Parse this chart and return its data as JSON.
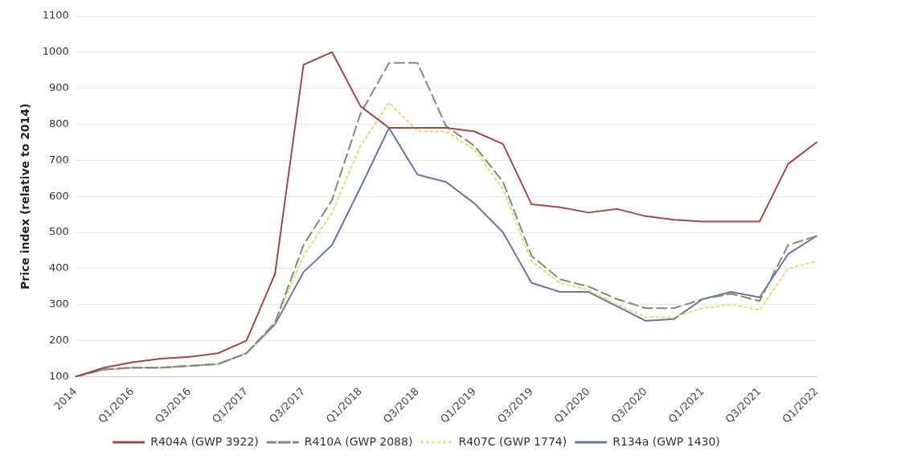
{
  "chart_data": {
    "type": "line",
    "ylabel": "Price index (relative to 2014)",
    "categories": [
      "2014",
      null,
      "Q1/2016",
      null,
      "Q3/2016",
      null,
      "Q1/2017",
      null,
      "Q3/2017",
      null,
      "Q1/2018",
      null,
      "Q3/2018",
      null,
      "Q1/2019",
      null,
      "Q3/2019",
      null,
      "Q1/2020",
      null,
      "Q3/2020",
      null,
      "Q1/2021",
      null,
      "Q3/2021",
      null,
      "Q1/2022"
    ],
    "series": [
      {
        "name": "R404A (GWP 3922)",
        "color": "#9b4a4a",
        "line_style": "solid",
        "values": [
          100,
          125,
          140,
          150,
          155,
          165,
          200,
          385,
          965,
          1000,
          850,
          790,
          790,
          790,
          780,
          745,
          578,
          570,
          555,
          565,
          545,
          535,
          530,
          530,
          530,
          690,
          750
        ]
      },
      {
        "name": "R410A (GWP 2088)",
        "color": "#7d8c72",
        "line_style": "dashed",
        "values": [
          100,
          120,
          125,
          125,
          130,
          135,
          165,
          250,
          465,
          590,
          830,
          970,
          970,
          795,
          740,
          640,
          435,
          370,
          350,
          315,
          290,
          290,
          315,
          330,
          310,
          465,
          490
        ]
      },
      {
        "name": "R407C (GWP 1774)",
        "color": "#e3dc7a",
        "line_style": "dotted",
        "values": [
          100,
          120,
          125,
          125,
          130,
          135,
          165,
          250,
          435,
          555,
          740,
          860,
          780,
          780,
          730,
          620,
          420,
          360,
          340,
          300,
          265,
          265,
          290,
          300,
          285,
          400,
          420
        ]
      },
      {
        "name": "R134a (GWP 1430)",
        "color": "#6a76a0",
        "line_style": "solid",
        "values": [
          100,
          120,
          125,
          125,
          130,
          135,
          165,
          245,
          390,
          465,
          625,
          790,
          660,
          640,
          580,
          500,
          360,
          335,
          335,
          295,
          255,
          260,
          315,
          335,
          320,
          440,
          490
        ]
      }
    ],
    "ylim": [
      100,
      1100
    ],
    "yticks": [
      100,
      200,
      300,
      400,
      500,
      600,
      700,
      800,
      900,
      1000,
      1100
    ],
    "grid": "y",
    "legend": "bottom",
    "marker": "none"
  }
}
